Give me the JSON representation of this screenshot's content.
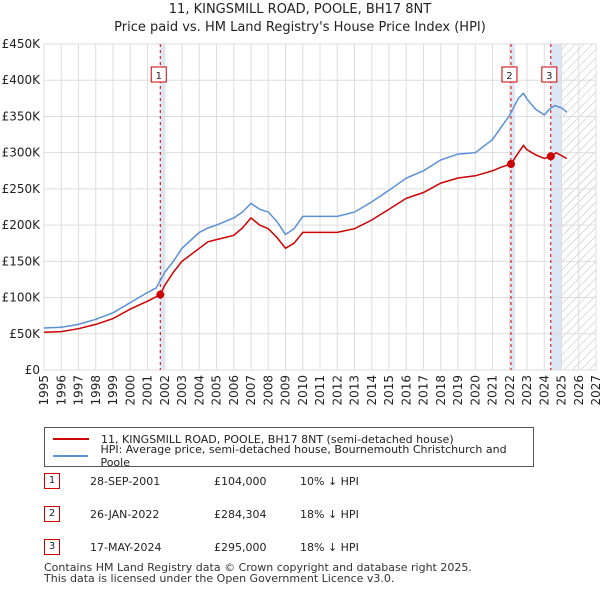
{
  "title_line1": "11, KINGSMILL ROAD, POOLE, BH17 8NT",
  "title_line2": "Price paid vs. HM Land Registry's House Price Index (HPI)",
  "colors": {
    "hpi": "#5b8fd6",
    "price": "#cc0000",
    "shade": "#dde6f5"
  },
  "chart_data": {
    "type": "line",
    "xlim": [
      1995,
      2027
    ],
    "ylim": [
      0,
      450000
    ],
    "y_ticks": [
      {
        "value": 0,
        "label": "£0"
      },
      {
        "value": 50000,
        "label": "£50K"
      },
      {
        "value": 100000,
        "label": "£100K"
      },
      {
        "value": 150000,
        "label": "£150K"
      },
      {
        "value": 200000,
        "label": "£200K"
      },
      {
        "value": 250000,
        "label": "£250K"
      },
      {
        "value": 300000,
        "label": "£300K"
      },
      {
        "value": 350000,
        "label": "£350K"
      },
      {
        "value": 400000,
        "label": "£400K"
      },
      {
        "value": 450000,
        "label": "£450K"
      }
    ],
    "x_ticks": [
      "1995",
      "1996",
      "1997",
      "1998",
      "1999",
      "2000",
      "2001",
      "2002",
      "2003",
      "2004",
      "2005",
      "2006",
      "2007",
      "2008",
      "2009",
      "2010",
      "2011",
      "2012",
      "2013",
      "2014",
      "2015",
      "2016",
      "2017",
      "2018",
      "2019",
      "2020",
      "2021",
      "2022",
      "2023",
      "2024",
      "2025",
      "2026",
      "2027"
    ],
    "grid": true,
    "hatched_from": 2025.0,
    "series": [
      {
        "name": "HPI: Average price, semi-detached house, Bournemouth Christchurch and Poole",
        "color": "#5b8fd6",
        "points": [
          [
            1995,
            58000
          ],
          [
            1996,
            59000
          ],
          [
            1997,
            63000
          ],
          [
            1998,
            70000
          ],
          [
            1999,
            79000
          ],
          [
            2000,
            93000
          ],
          [
            2001,
            107000
          ],
          [
            2001.5,
            113000
          ],
          [
            2002,
            135000
          ],
          [
            2002.5,
            150000
          ],
          [
            2003,
            168000
          ],
          [
            2004,
            190000
          ],
          [
            2004.5,
            196000
          ],
          [
            2005,
            200000
          ],
          [
            2006,
            210000
          ],
          [
            2006.5,
            218000
          ],
          [
            2007,
            230000
          ],
          [
            2007.5,
            222000
          ],
          [
            2008,
            218000
          ],
          [
            2008.5,
            205000
          ],
          [
            2009,
            187000
          ],
          [
            2009.5,
            195000
          ],
          [
            2010,
            212000
          ],
          [
            2011,
            212000
          ],
          [
            2012,
            212000
          ],
          [
            2013,
            218000
          ],
          [
            2014,
            232000
          ],
          [
            2015,
            248000
          ],
          [
            2016,
            265000
          ],
          [
            2017,
            275000
          ],
          [
            2018,
            290000
          ],
          [
            2019,
            298000
          ],
          [
            2020,
            300000
          ],
          [
            2021,
            318000
          ],
          [
            2021.5,
            335000
          ],
          [
            2022,
            352000
          ],
          [
            2022.5,
            375000
          ],
          [
            2022.8,
            382000
          ],
          [
            2023,
            374000
          ],
          [
            2023.5,
            360000
          ],
          [
            2024,
            352000
          ],
          [
            2024.3,
            360000
          ],
          [
            2024.6,
            365000
          ],
          [
            2025,
            362000
          ],
          [
            2025.3,
            356000
          ]
        ]
      },
      {
        "name": "11, KINGSMILL ROAD, POOLE, BH17 8NT (semi-detached house)",
        "color": "#cc0000",
        "points": [
          [
            1995,
            52000
          ],
          [
            1996,
            53000
          ],
          [
            1997,
            57000
          ],
          [
            1998,
            63000
          ],
          [
            1999,
            71000
          ],
          [
            2000,
            84000
          ],
          [
            2001,
            95000
          ],
          [
            2001.74,
            104000
          ],
          [
            2002,
            117000
          ],
          [
            2002.5,
            135000
          ],
          [
            2003,
            150000
          ],
          [
            2004,
            168000
          ],
          [
            2004.5,
            177000
          ],
          [
            2005,
            180000
          ],
          [
            2006,
            186000
          ],
          [
            2006.5,
            196000
          ],
          [
            2007,
            210000
          ],
          [
            2007.5,
            200000
          ],
          [
            2008,
            195000
          ],
          [
            2008.5,
            183000
          ],
          [
            2009,
            168000
          ],
          [
            2009.5,
            175000
          ],
          [
            2010,
            190000
          ],
          [
            2011,
            190000
          ],
          [
            2012,
            190000
          ],
          [
            2013,
            195000
          ],
          [
            2014,
            207000
          ],
          [
            2015,
            222000
          ],
          [
            2016,
            237000
          ],
          [
            2017,
            245000
          ],
          [
            2018,
            258000
          ],
          [
            2019,
            265000
          ],
          [
            2020,
            268000
          ],
          [
            2021,
            275000
          ],
          [
            2021.5,
            280000
          ],
          [
            2022.07,
            284304
          ],
          [
            2022.5,
            300000
          ],
          [
            2022.8,
            310000
          ],
          [
            2023,
            304000
          ],
          [
            2023.5,
            297000
          ],
          [
            2024,
            292000
          ],
          [
            2024.38,
            295000
          ],
          [
            2024.7,
            300000
          ],
          [
            2025,
            296000
          ],
          [
            2025.3,
            292000
          ]
        ]
      }
    ],
    "sales": [
      {
        "num": "1",
        "x": 2001.74,
        "y": 104000
      },
      {
        "num": "2",
        "x": 2022.07,
        "y": 284304
      },
      {
        "num": "3",
        "x": 2024.38,
        "y": 295000
      }
    ]
  },
  "legend": {
    "price_label": "11, KINGSMILL ROAD, POOLE, BH17 8NT (semi-detached house)",
    "hpi_label": "HPI: Average price, semi-detached house, Bournemouth Christchurch and Poole"
  },
  "sales_table": [
    {
      "num": "1",
      "date": "28-SEP-2001",
      "price": "£104,000",
      "diff": "10% ↓ HPI"
    },
    {
      "num": "2",
      "date": "26-JAN-2022",
      "price": "£284,304",
      "diff": "18% ↓ HPI"
    },
    {
      "num": "3",
      "date": "17-MAY-2024",
      "price": "£295,000",
      "diff": "18% ↓ HPI"
    }
  ],
  "footer_line1": "Contains HM Land Registry data © Crown copyright and database right 2025.",
  "footer_line2": "This data is licensed under the Open Government Licence v3.0."
}
